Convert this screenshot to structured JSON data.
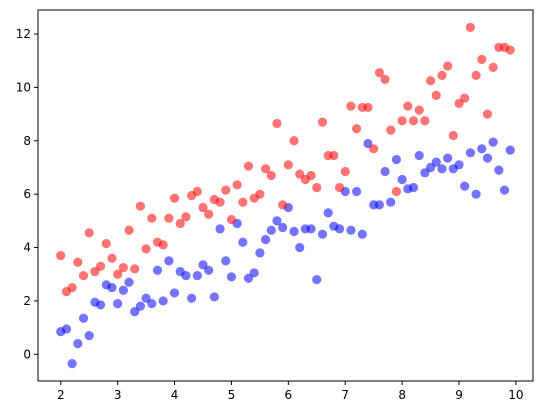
{
  "chart_data": {
    "type": "scatter",
    "title": "",
    "xlabel": "",
    "ylabel": "",
    "xlim": [
      1.6,
      10.3
    ],
    "ylim": [
      -1,
      12.9
    ],
    "x_ticks": [
      2,
      3,
      4,
      5,
      6,
      7,
      8,
      9,
      10
    ],
    "x_tick_labels": [
      "2",
      "3",
      "4",
      "5",
      "6",
      "7",
      "8",
      "9",
      "10"
    ],
    "y_ticks": [
      0,
      2,
      4,
      6,
      8,
      10,
      12
    ],
    "y_tick_labels": [
      "0",
      "2",
      "4",
      "6",
      "8",
      "10",
      "12"
    ],
    "grid": false,
    "series": [
      {
        "color": "#0000ff",
        "opacity": 0.55,
        "points": [
          [
            2.0,
            0.85
          ],
          [
            2.1,
            0.95
          ],
          [
            2.2,
            -0.35
          ],
          [
            2.3,
            0.4
          ],
          [
            2.4,
            1.35
          ],
          [
            2.5,
            0.7
          ],
          [
            2.6,
            1.95
          ],
          [
            2.7,
            1.85
          ],
          [
            2.8,
            2.6
          ],
          [
            2.9,
            2.5
          ],
          [
            3.0,
            1.9
          ],
          [
            3.1,
            2.4
          ],
          [
            3.2,
            2.7
          ],
          [
            3.3,
            1.6
          ],
          [
            3.4,
            1.8
          ],
          [
            3.5,
            2.1
          ],
          [
            3.6,
            1.9
          ],
          [
            3.7,
            3.15
          ],
          [
            3.8,
            2.0
          ],
          [
            3.9,
            3.5
          ],
          [
            4.0,
            2.3
          ],
          [
            4.1,
            3.1
          ],
          [
            4.2,
            2.95
          ],
          [
            4.3,
            2.1
          ],
          [
            4.4,
            2.95
          ],
          [
            4.5,
            3.35
          ],
          [
            4.6,
            3.15
          ],
          [
            4.7,
            2.15
          ],
          [
            4.8,
            4.7
          ],
          [
            4.9,
            3.5
          ],
          [
            5.0,
            2.9
          ],
          [
            5.1,
            4.9
          ],
          [
            5.2,
            4.2
          ],
          [
            5.3,
            2.85
          ],
          [
            5.4,
            3.05
          ],
          [
            5.5,
            3.8
          ],
          [
            5.6,
            4.3
          ],
          [
            5.7,
            4.65
          ],
          [
            5.8,
            5.0
          ],
          [
            5.9,
            4.75
          ],
          [
            6.0,
            5.5
          ],
          [
            6.1,
            4.6
          ],
          [
            6.2,
            4.0
          ],
          [
            6.3,
            4.7
          ],
          [
            6.4,
            4.7
          ],
          [
            6.5,
            2.8
          ],
          [
            6.6,
            4.5
          ],
          [
            6.7,
            5.3
          ],
          [
            6.8,
            4.8
          ],
          [
            6.9,
            4.7
          ],
          [
            7.0,
            6.1
          ],
          [
            7.1,
            4.65
          ],
          [
            7.2,
            6.1
          ],
          [
            7.3,
            4.5
          ],
          [
            7.4,
            7.9
          ],
          [
            7.5,
            5.6
          ],
          [
            7.6,
            5.6
          ],
          [
            7.7,
            6.85
          ],
          [
            7.8,
            5.7
          ],
          [
            7.9,
            7.3
          ],
          [
            8.0,
            6.55
          ],
          [
            8.1,
            6.2
          ],
          [
            8.2,
            6.25
          ],
          [
            8.3,
            7.45
          ],
          [
            8.4,
            6.8
          ],
          [
            8.5,
            7.0
          ],
          [
            8.6,
            7.2
          ],
          [
            8.7,
            6.95
          ],
          [
            8.8,
            7.35
          ],
          [
            8.9,
            6.95
          ],
          [
            9.0,
            7.1
          ],
          [
            9.1,
            6.3
          ],
          [
            9.2,
            7.55
          ],
          [
            9.3,
            6.0
          ],
          [
            9.4,
            7.7
          ],
          [
            9.5,
            7.35
          ],
          [
            9.6,
            7.95
          ],
          [
            9.7,
            6.9
          ],
          [
            9.8,
            6.15
          ],
          [
            9.9,
            7.65
          ]
        ]
      },
      {
        "color": "#ff0000",
        "opacity": 0.55,
        "points": [
          [
            2.0,
            3.7
          ],
          [
            2.1,
            2.35
          ],
          [
            2.2,
            2.5
          ],
          [
            2.3,
            3.45
          ],
          [
            2.4,
            2.95
          ],
          [
            2.5,
            4.55
          ],
          [
            2.6,
            3.1
          ],
          [
            2.7,
            3.3
          ],
          [
            2.8,
            4.15
          ],
          [
            2.9,
            3.6
          ],
          [
            3.0,
            3.0
          ],
          [
            3.1,
            3.25
          ],
          [
            3.2,
            4.65
          ],
          [
            3.3,
            3.2
          ],
          [
            3.4,
            5.55
          ],
          [
            3.5,
            3.95
          ],
          [
            3.6,
            5.1
          ],
          [
            3.7,
            4.2
          ],
          [
            3.8,
            4.1
          ],
          [
            3.9,
            5.1
          ],
          [
            4.0,
            5.85
          ],
          [
            4.1,
            4.9
          ],
          [
            4.2,
            5.15
          ],
          [
            4.3,
            5.95
          ],
          [
            4.4,
            6.1
          ],
          [
            4.5,
            5.5
          ],
          [
            4.6,
            5.25
          ],
          [
            4.7,
            5.8
          ],
          [
            4.8,
            5.7
          ],
          [
            4.9,
            6.15
          ],
          [
            5.0,
            5.05
          ],
          [
            5.1,
            6.35
          ],
          [
            5.2,
            5.7
          ],
          [
            5.3,
            7.05
          ],
          [
            5.4,
            5.85
          ],
          [
            5.5,
            6.0
          ],
          [
            5.6,
            6.95
          ],
          [
            5.7,
            6.7
          ],
          [
            5.8,
            8.65
          ],
          [
            5.9,
            5.6
          ],
          [
            6.0,
            7.1
          ],
          [
            6.1,
            8.0
          ],
          [
            6.2,
            6.75
          ],
          [
            6.3,
            6.55
          ],
          [
            6.4,
            6.7
          ],
          [
            6.5,
            6.25
          ],
          [
            6.6,
            8.7
          ],
          [
            6.7,
            7.45
          ],
          [
            6.8,
            7.45
          ],
          [
            6.9,
            6.25
          ],
          [
            7.0,
            6.85
          ],
          [
            7.1,
            9.3
          ],
          [
            7.2,
            8.45
          ],
          [
            7.3,
            9.25
          ],
          [
            7.4,
            9.25
          ],
          [
            7.5,
            7.7
          ],
          [
            7.6,
            10.55
          ],
          [
            7.7,
            10.3
          ],
          [
            7.8,
            8.4
          ],
          [
            7.9,
            6.1
          ],
          [
            8.0,
            8.75
          ],
          [
            8.1,
            9.3
          ],
          [
            8.2,
            8.75
          ],
          [
            8.3,
            9.15
          ],
          [
            8.4,
            8.75
          ],
          [
            8.5,
            10.25
          ],
          [
            8.6,
            9.7
          ],
          [
            8.7,
            10.45
          ],
          [
            8.8,
            10.8
          ],
          [
            8.9,
            8.2
          ],
          [
            9.0,
            9.4
          ],
          [
            9.1,
            9.6
          ],
          [
            9.2,
            12.25
          ],
          [
            9.3,
            10.45
          ],
          [
            9.4,
            11.05
          ],
          [
            9.5,
            9.0
          ],
          [
            9.6,
            10.75
          ],
          [
            9.7,
            11.5
          ],
          [
            9.8,
            11.5
          ],
          [
            9.9,
            11.4
          ]
        ]
      }
    ]
  }
}
